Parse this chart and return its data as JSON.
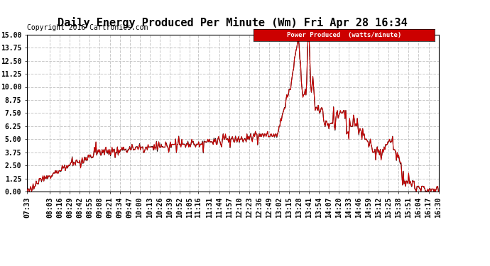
{
  "title": "Daily Energy Produced Per Minute (Wm) Fri Apr 28 16:34",
  "copyright": "Copyright 2016 Cartronics.com",
  "legend_label": "Power Produced  (watts/minute)",
  "legend_bg": "#cc0000",
  "legend_fg": "#ffffff",
  "line_color": "#cc0000",
  "bg_color": "#ffffff",
  "plot_bg": "#ffffff",
  "grid_color": "#c8c8c8",
  "ylim": [
    0,
    15.0
  ],
  "yticks": [
    0.0,
    1.25,
    2.5,
    3.75,
    5.0,
    6.25,
    7.5,
    8.75,
    10.0,
    11.25,
    12.5,
    13.75,
    15.0
  ],
  "title_fontsize": 11,
  "copyright_fontsize": 7,
  "tick_label_fontsize": 7,
  "tick_times": [
    "07:33",
    "08:03",
    "08:16",
    "08:29",
    "08:42",
    "08:55",
    "09:08",
    "09:21",
    "09:34",
    "09:47",
    "10:00",
    "10:13",
    "10:26",
    "10:39",
    "10:52",
    "11:05",
    "11:16",
    "11:31",
    "11:44",
    "11:57",
    "12:10",
    "12:23",
    "12:36",
    "12:49",
    "13:02",
    "13:15",
    "13:28",
    "13:41",
    "13:54",
    "14:07",
    "14:20",
    "14:33",
    "14:46",
    "14:59",
    "15:12",
    "15:25",
    "15:38",
    "15:51",
    "16:04",
    "16:17",
    "16:30"
  ]
}
